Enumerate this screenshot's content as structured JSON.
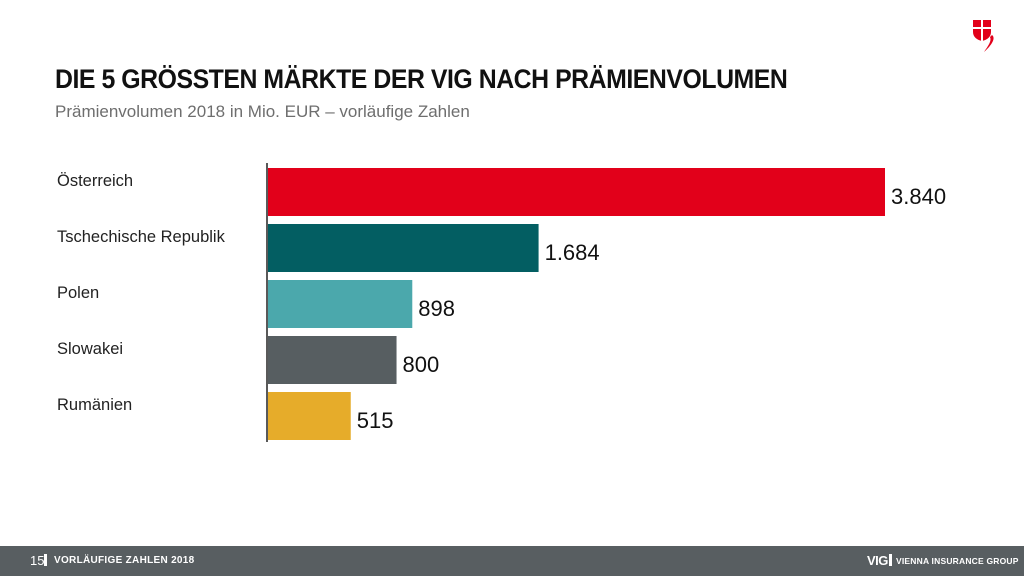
{
  "header": {
    "title": "DIE 5 GRÖSSTEN MÄRKTE DER VIG NACH PRÄMIENVOLUMEN",
    "subtitle": "Prämienvolumen 2018 in Mio. EUR – vorläufige Zahlen"
  },
  "logo": {
    "icon": "vig-shield-logo",
    "color": "#e2001a"
  },
  "chart_data": {
    "type": "bar",
    "orientation": "horizontal",
    "title": "DIE 5 GRÖSSTEN MÄRKTE DER VIG NACH PRÄMIENVOLUMEN",
    "subtitle": "Prämienvolumen 2018 in Mio. EUR – vorläufige Zahlen",
    "categories": [
      "Österreich",
      "Tschechische Republik",
      "Polen",
      "Slowakei",
      "Rumänien"
    ],
    "values": [
      3840,
      1684,
      898,
      800,
      515
    ],
    "value_labels": [
      "3.840",
      "1.684",
      "898",
      "800",
      "515"
    ],
    "colors": [
      "#e2001a",
      "#035e62",
      "#4ba8ac",
      "#575e61",
      "#e6ac2a"
    ],
    "xlim": [
      0,
      3840
    ],
    "grid": false,
    "legend": "none"
  },
  "footer": {
    "page_number": "15",
    "left_text": "VORLÄUFIGE ZAHLEN 2018",
    "brand_short": "VIG",
    "brand_long": "VIENNA INSURANCE GROUP"
  }
}
